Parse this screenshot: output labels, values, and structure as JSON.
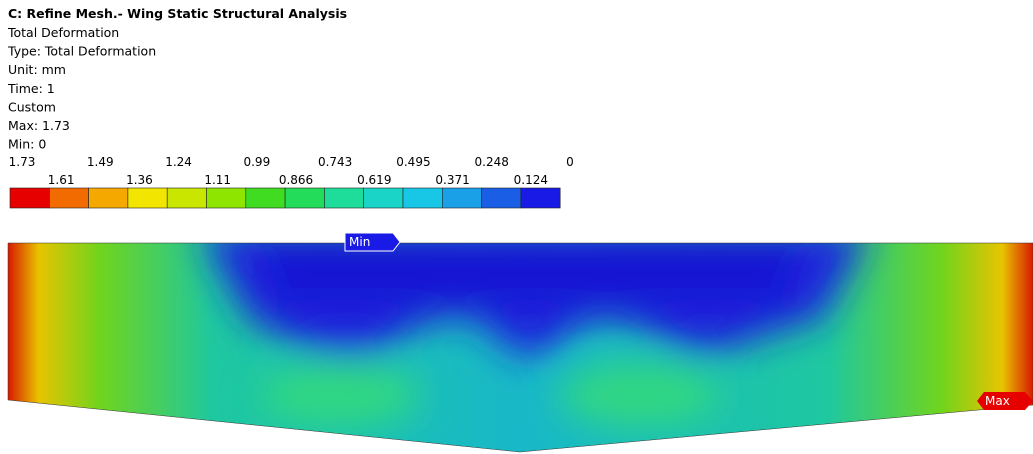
{
  "header": {
    "title": "C: Refine Mesh.- Wing Static Structural Analysis",
    "lines": [
      "Total Deformation",
      "Type: Total Deformation",
      "Unit: mm",
      "Time: 1",
      "Custom",
      "Max: 1.73",
      "Min: 0"
    ]
  },
  "legend": {
    "labels": [
      1.73,
      1.61,
      1.49,
      1.36,
      1.24,
      1.11,
      0.99,
      0.866,
      0.743,
      0.619,
      0.495,
      0.371,
      0.248,
      0.124,
      0
    ],
    "colors": [
      "#e60000",
      "#f26b00",
      "#f5a800",
      "#f2e600",
      "#c8e600",
      "#8ee600",
      "#3fdc22",
      "#22dc5a",
      "#1edc9a",
      "#1ad4c8",
      "#18c6e6",
      "#1aa0e6",
      "#1a5ee6",
      "#1a1ae6"
    ]
  },
  "probes": {
    "min": "Min",
    "max": "Max"
  }
}
